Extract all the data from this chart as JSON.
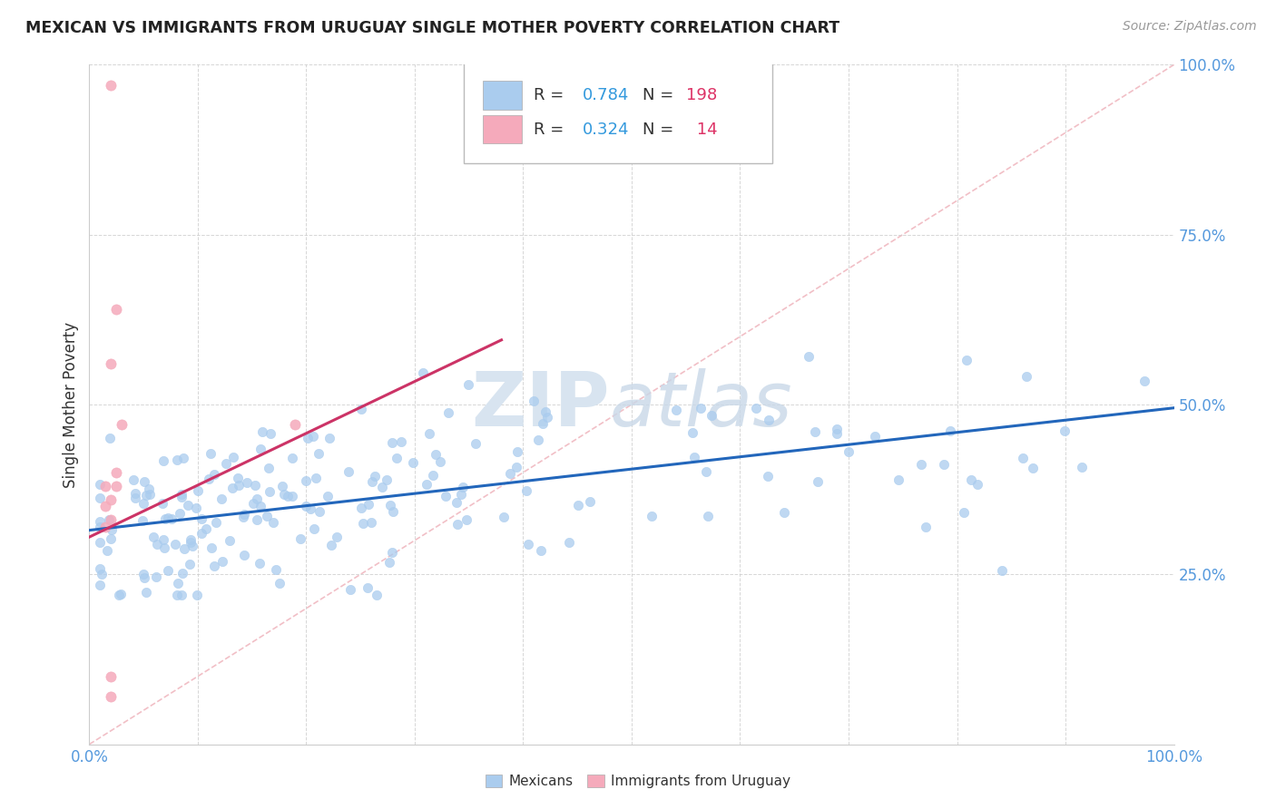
{
  "title": "MEXICAN VS IMMIGRANTS FROM URUGUAY SINGLE MOTHER POVERTY CORRELATION CHART",
  "source": "Source: ZipAtlas.com",
  "ylabel": "Single Mother Poverty",
  "blue_R": 0.784,
  "blue_N": 198,
  "pink_R": 0.324,
  "pink_N": 14,
  "blue_color": "#aaccee",
  "pink_color": "#f5aabb",
  "blue_line_color": "#2266bb",
  "pink_line_color": "#cc3366",
  "diag_line_color": "#f0b8c0",
  "legend_R_color": "#3399dd",
  "legend_N_color": "#dd3366",
  "watermark_zip": "ZIP",
  "watermark_atlas": "atlas",
  "watermark_color": "#d8e4f0",
  "grid_color": "#cccccc",
  "background_color": "#ffffff",
  "xlim": [
    0,
    1
  ],
  "ylim": [
    0,
    1
  ],
  "blue_line_x": [
    0.0,
    1.0
  ],
  "blue_line_y": [
    0.315,
    0.495
  ],
  "pink_line_x": [
    0.0,
    0.38
  ],
  "pink_line_y": [
    0.305,
    0.595
  ],
  "diag_line_x": [
    0.0,
    1.0
  ],
  "diag_line_y": [
    0.0,
    1.0
  ],
  "pink_scatter_x": [
    0.02,
    0.025,
    0.02,
    0.03,
    0.025,
    0.025,
    0.02,
    0.02,
    0.02,
    0.015,
    0.015,
    0.015,
    0.02,
    0.19
  ],
  "pink_scatter_y": [
    0.97,
    0.64,
    0.56,
    0.47,
    0.4,
    0.38,
    0.36,
    0.33,
    0.1,
    0.38,
    0.35,
    0.32,
    0.07,
    0.47
  ],
  "tick_label_color": "#5599dd"
}
